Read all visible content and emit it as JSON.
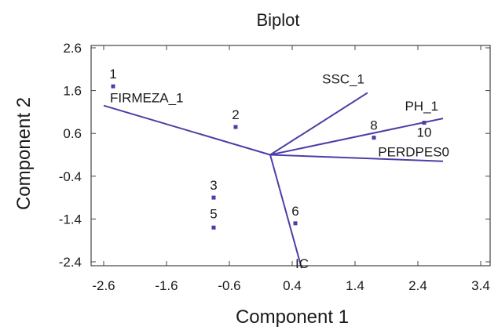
{
  "chart_data": {
    "type": "scatter",
    "title": "Biplot",
    "xlabel": "Component 1",
    "ylabel": "Component 2",
    "xlim": [
      -2.6,
      3.4
    ],
    "ylim": [
      -2.4,
      2.6
    ],
    "xticks": [
      "-2.6",
      "-1.6",
      "-0.6",
      "0.4",
      "1.4",
      "2.4",
      "3.4"
    ],
    "yticks": [
      "2.6",
      "1.6",
      "0.6",
      "-0.4",
      "-1.4",
      "-2.4"
    ],
    "points": [
      {
        "label": "1",
        "x": -2.45,
        "y": 1.7
      },
      {
        "label": "2",
        "x": -0.5,
        "y": 0.75
      },
      {
        "label": "3",
        "x": -0.85,
        "y": -0.9
      },
      {
        "label": "5",
        "x": -0.85,
        "y": -1.6
      },
      {
        "label": "6",
        "x": 0.45,
        "y": -1.5
      },
      {
        "label": "8",
        "x": 1.7,
        "y": 0.5
      },
      {
        "label": "10",
        "x": 2.5,
        "y": 0.85
      }
    ],
    "vector_origin": {
      "x": 0.05,
      "y": 0.1
    },
    "vectors": [
      {
        "label": "FIRMEZA_1",
        "x": -2.6,
        "y": 1.25
      },
      {
        "label": "SSC_1",
        "x": 1.6,
        "y": 1.55
      },
      {
        "label": "PH_1",
        "x": 2.8,
        "y": 0.95
      },
      {
        "label": "PERDPES0",
        "x": 2.8,
        "y": -0.05
      },
      {
        "label": "IC",
        "x": 0.55,
        "y": -2.55
      }
    ],
    "colors": {
      "vectors": "#4b3fa6",
      "points": "#4b3fa6",
      "frame": "#444444"
    }
  }
}
